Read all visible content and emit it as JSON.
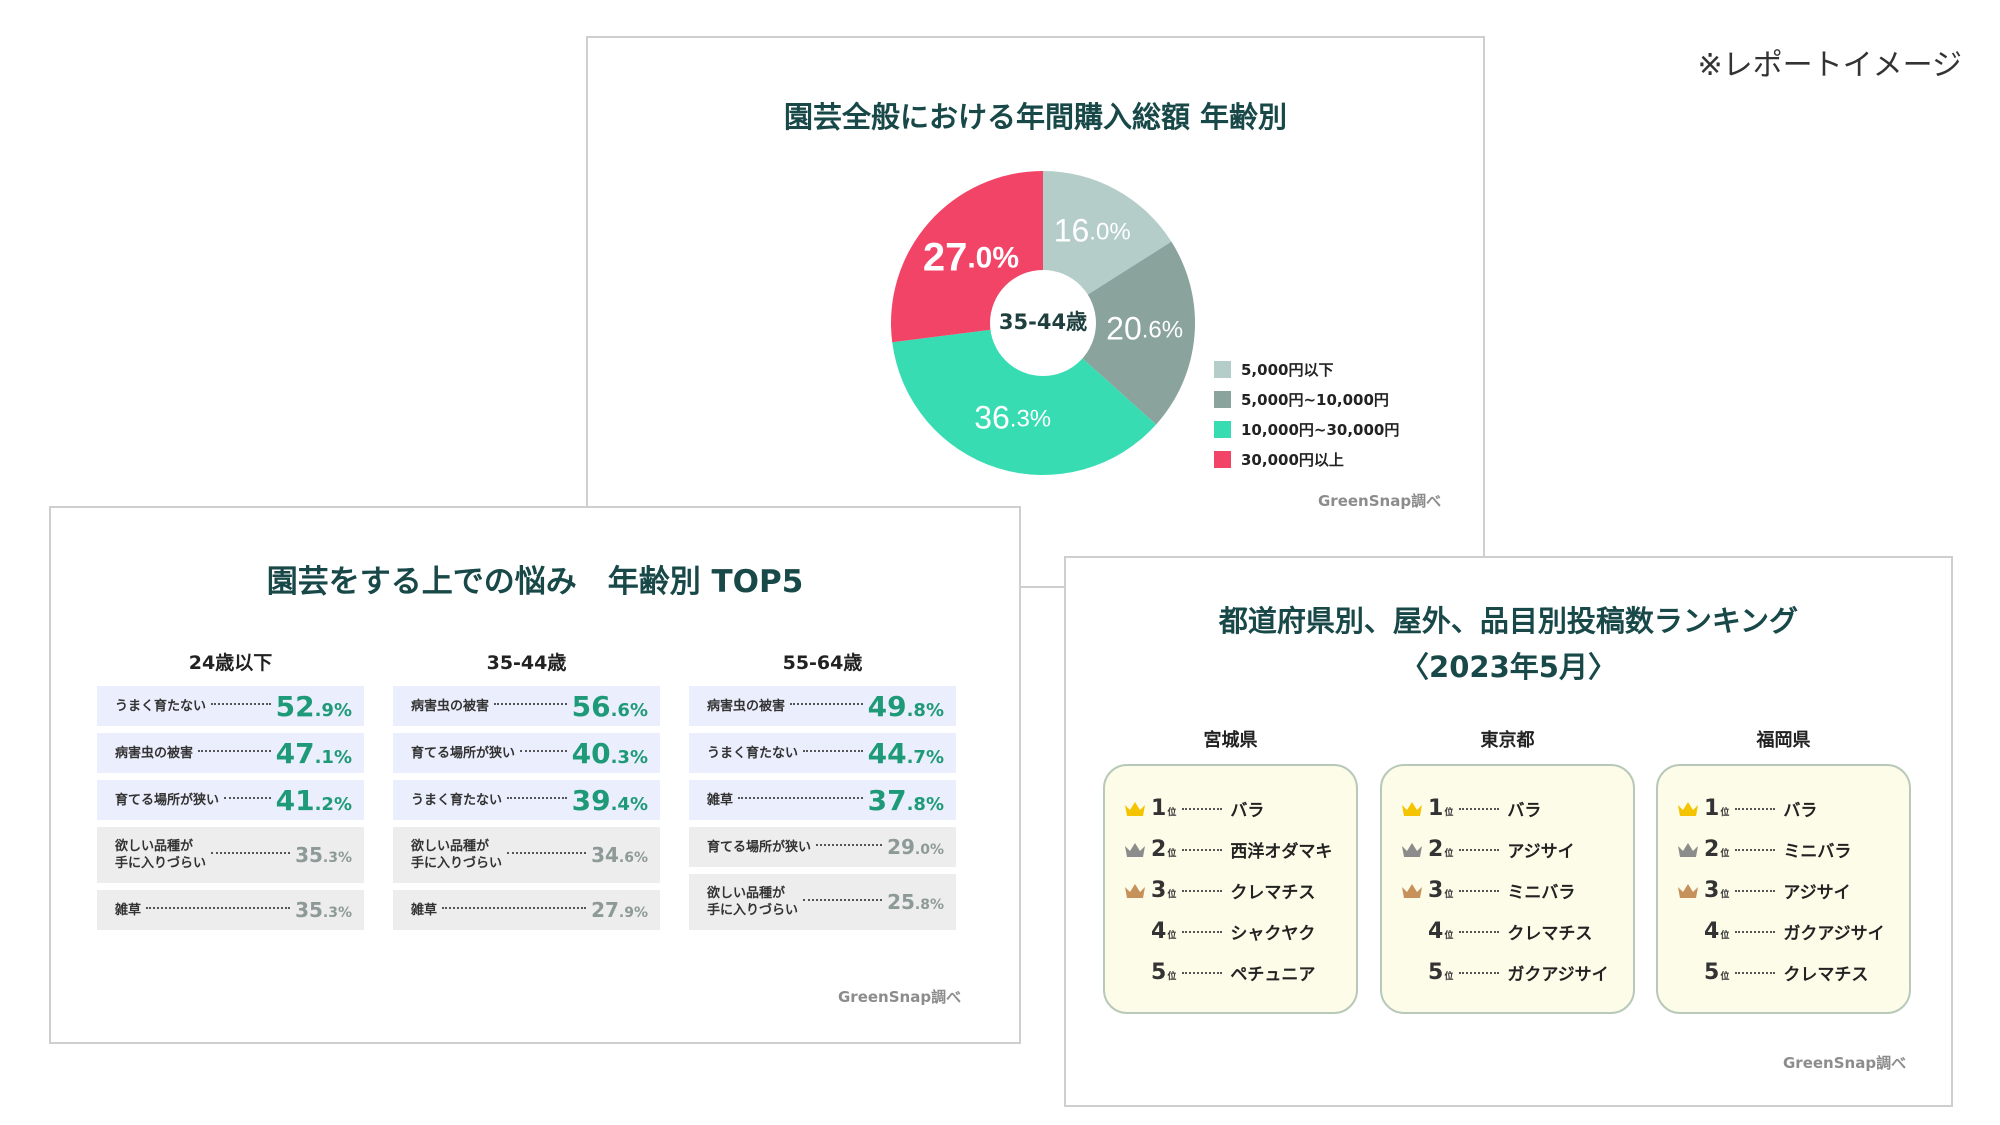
{
  "note": "※レポートイメージ",
  "pie_card": {
    "title": "園芸全般における年間購入総額  年齢別",
    "center_label": "35-44歳",
    "legend": [
      "5,000円以下",
      "5,000円~10,000円",
      "10,000円~30,000円",
      "30,000円以上"
    ],
    "source": "GreenSnap調べ"
  },
  "chart_data": [
    {
      "type": "pie",
      "title": "園芸全般における年間購入総額  年齢別",
      "categories": [
        "5,000円以下",
        "5,000円~10,000円",
        "10,000円~30,000円",
        "30,000円以上"
      ],
      "values": [
        16.0,
        20.6,
        36.3,
        27.0
      ],
      "labels": [
        {
          "int": "16",
          "dec": ".0%"
        },
        {
          "int": "20",
          "dec": ".6%"
        },
        {
          "int": "36",
          "dec": ".3%"
        },
        {
          "int": "27",
          "dec": ".0%"
        }
      ],
      "colors": [
        "#b5cdc9",
        "#8aa39d",
        "#37dcb2",
        "#f24466"
      ],
      "legend_position": "right"
    }
  ],
  "worry_card": {
    "title": "園芸をする上での悩み　年齢別 TOP5",
    "source": "GreenSnap調べ",
    "groups": [
      {
        "label": "24歳以下",
        "items": [
          {
            "label": "うまく育たない",
            "int": "52",
            "dec": ".9%",
            "hi": true
          },
          {
            "label": "病害虫の被害",
            "int": "47",
            "dec": ".1%",
            "hi": true
          },
          {
            "label": "育てる場所が狭い",
            "int": "41",
            "dec": ".2%",
            "hi": true
          },
          {
            "label": "欲しい品種が\n手に入りづらい",
            "int": "35",
            "dec": ".3%",
            "hi": false
          },
          {
            "label": "雑草",
            "int": "35",
            "dec": ".3%",
            "hi": false
          }
        ]
      },
      {
        "label": "35-44歳",
        "items": [
          {
            "label": "病害虫の被害",
            "int": "56",
            "dec": ".6%",
            "hi": true
          },
          {
            "label": "育てる場所が狭い",
            "int": "40",
            "dec": ".3%",
            "hi": true
          },
          {
            "label": "うまく育たない",
            "int": "39",
            "dec": ".4%",
            "hi": true
          },
          {
            "label": "欲しい品種が\n手に入りづらい",
            "int": "34",
            "dec": ".6%",
            "hi": false
          },
          {
            "label": "雑草",
            "int": "27",
            "dec": ".9%",
            "hi": false
          }
        ]
      },
      {
        "label": "55-64歳",
        "items": [
          {
            "label": "病害虫の被害",
            "int": "49",
            "dec": ".8%",
            "hi": true
          },
          {
            "label": "うまく育たない",
            "int": "44",
            "dec": ".7%",
            "hi": true
          },
          {
            "label": "雑草",
            "int": "37",
            "dec": ".8%",
            "hi": true
          },
          {
            "label": "育てる場所が狭い",
            "int": "29",
            "dec": ".0%",
            "hi": false
          },
          {
            "label": "欲しい品種が\n手に入りづらい",
            "int": "25",
            "dec": ".8%",
            "hi": false
          }
        ]
      }
    ]
  },
  "rank_card": {
    "title_line1": "都道府県別、屋外、品目別投稿数ランキング",
    "title_line2": "〈2023年5月〉",
    "source": "GreenSnap調べ",
    "rank_suffix": "位",
    "crown_colors": [
      "#f5c400",
      "#8c8c8c",
      "#c6915a"
    ],
    "prefectures": [
      {
        "name": "宮城県",
        "items": [
          "バラ",
          "西洋オダマキ",
          "クレマチス",
          "シャクヤク",
          "ペチュニア"
        ]
      },
      {
        "name": "東京都",
        "items": [
          "バラ",
          "アジサイ",
          "ミニバラ",
          "クレマチス",
          "ガクアジサイ"
        ]
      },
      {
        "name": "福岡県",
        "items": [
          "バラ",
          "ミニバラ",
          "アジサイ",
          "ガクアジサイ",
          "クレマチス"
        ]
      }
    ]
  }
}
